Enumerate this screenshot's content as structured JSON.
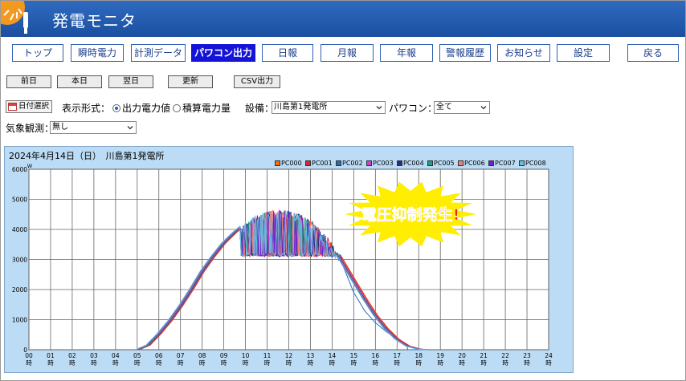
{
  "app": {
    "title": "発電モニタ"
  },
  "nav": {
    "items": [
      {
        "label": "トップ",
        "active": false
      },
      {
        "label": "瞬時電力",
        "active": false
      },
      {
        "label": "計測データ",
        "active": false
      },
      {
        "label": "パワコン出力",
        "active": true
      },
      {
        "label": "日報",
        "active": false
      },
      {
        "label": "月報",
        "active": false
      },
      {
        "label": "年報",
        "active": false
      },
      {
        "label": "警報履歴",
        "active": false
      },
      {
        "label": "お知らせ",
        "active": false
      },
      {
        "label": "設定",
        "active": false
      },
      {
        "label": "戻る",
        "active": false
      }
    ]
  },
  "subnav": {
    "prev": "前日",
    "today": "本日",
    "next": "翌日",
    "refresh": "更新",
    "csv": "CSV出力"
  },
  "filters": {
    "date_select": "日付選択",
    "display_format_label": "表示形式：",
    "radio_output": "出力電力値",
    "radio_cumulative": "積算電力量",
    "selected_format": "output",
    "facility_label": "設備：",
    "facility_value": "川島第1発電所",
    "pcs_label": "パワコン：",
    "pcs_value": "全て",
    "weather_label": "気象観測：",
    "weather_value": "無し"
  },
  "chart_data": {
    "type": "line",
    "title": "2024年4月14日（日）　川島第1発電所",
    "ylabel": "W",
    "xlabel": "",
    "ylim": [
      0,
      6000
    ],
    "yticks": [
      0,
      1000,
      2000,
      3000,
      4000,
      5000,
      6000
    ],
    "xticks": [
      "00",
      "01",
      "02",
      "03",
      "04",
      "05",
      "06",
      "07",
      "08",
      "09",
      "10",
      "11",
      "12",
      "13",
      "14",
      "15",
      "16",
      "17",
      "18",
      "19",
      "20",
      "21",
      "22",
      "23",
      "24"
    ],
    "xtick_unit": "時",
    "grid": true,
    "legend_position": "top-right",
    "annotation": "電圧抑制発生!",
    "series": [
      {
        "name": "PC000",
        "color": "#ff6a00"
      },
      {
        "name": "PC001",
        "color": "#e0203a"
      },
      {
        "name": "PC002",
        "color": "#1f6fb2"
      },
      {
        "name": "PC003",
        "color": "#d040c0"
      },
      {
        "name": "PC004",
        "color": "#2a2a8a"
      },
      {
        "name": "PC005",
        "color": "#20a080"
      },
      {
        "name": "PC006",
        "color": "#f08080"
      },
      {
        "name": "PC007",
        "color": "#7020d0"
      },
      {
        "name": "PC008",
        "color": "#60c0e0"
      }
    ],
    "profile_x": [
      5.0,
      5.5,
      6.0,
      6.5,
      7.0,
      7.5,
      8.0,
      8.5,
      9.0,
      9.5,
      10.0,
      10.5,
      11.0,
      11.5,
      12.0,
      12.5,
      13.0,
      13.5,
      14.0,
      14.5,
      15.0,
      15.5,
      16.0,
      16.5,
      17.0,
      17.5,
      18.0,
      18.5
    ],
    "profile_y": [
      0,
      150,
      520,
      950,
      1450,
      2000,
      2600,
      3100,
      3550,
      3900,
      4200,
      4450,
      4600,
      4650,
      4620,
      4500,
      4300,
      3950,
      3500,
      2900,
      2300,
      1700,
      1150,
      700,
      350,
      120,
      20,
      0
    ],
    "curtailment": {
      "start": 9.8,
      "end": 14.6,
      "floor": 3100
    },
    "early_drop_series": "PC002",
    "early_drop_x": [
      14.5,
      15.0,
      15.5,
      16.0,
      16.5,
      17.0,
      17.5
    ],
    "early_drop_y": [
      2800,
      1900,
      1300,
      900,
      600,
      350,
      100
    ]
  },
  "colors": {
    "header": "#1b4fa0",
    "nav_active": "#1414d8",
    "chart_bg": "#bcdcf5",
    "burst": "#ffee00",
    "burst_text": "#ff1a1a"
  }
}
